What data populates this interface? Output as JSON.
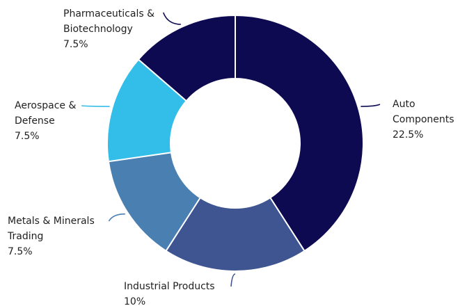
{
  "chart_data": {
    "type": "pie",
    "subtype": "donut",
    "title": "",
    "slices": [
      {
        "name": "Auto Components",
        "label_lines": [
          "Auto",
          "Components"
        ],
        "value_label": "22.5%",
        "value": 22.5,
        "color": "#0e0a52"
      },
      {
        "name": "Industrial Products",
        "label_lines": [
          "Industrial Products"
        ],
        "value_label": "10%",
        "value": 10,
        "color": "#3f5591"
      },
      {
        "name": "Metals & Minerals Trading",
        "label_lines": [
          "Metals & Minerals",
          "Trading"
        ],
        "value_label": "7.5%",
        "value": 7.5,
        "color": "#4a7fb2"
      },
      {
        "name": "Aerospace & Defense",
        "label_lines": [
          "Aerospace &",
          "Defense"
        ],
        "value_label": "7.5%",
        "value": 7.5,
        "color": "#33bde9"
      },
      {
        "name": "Pharmaceuticals & Biotechnology",
        "label_lines": [
          "Pharmaceuticals &",
          "Biotechnology"
        ],
        "value_label": "7.5%",
        "value": 7.5,
        "color": "#0e0a52"
      }
    ],
    "legend": "none"
  }
}
